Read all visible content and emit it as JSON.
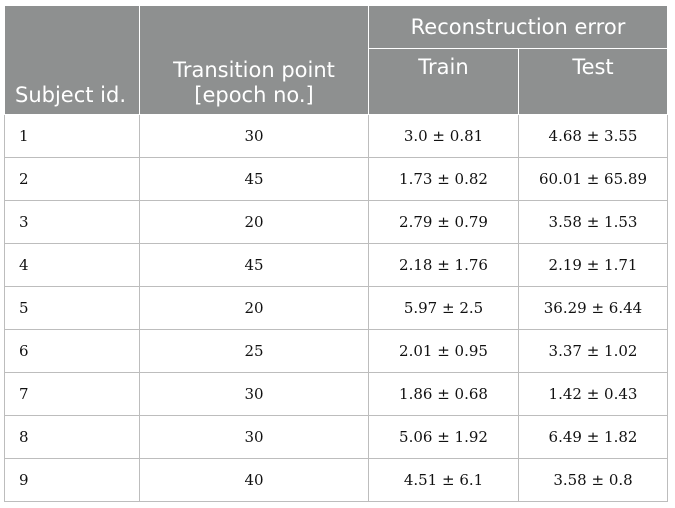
{
  "table": {
    "headers": {
      "subject_id": "Subject id.",
      "transition_point": "Transition point [epoch no.]",
      "reconstruction_error": "Reconstruction error",
      "train": "Train",
      "test": "Test"
    },
    "rows": [
      {
        "subject": "1",
        "transition": "30",
        "train": "3.0 ± 0.81",
        "test": "4.68 ± 3.55"
      },
      {
        "subject": "2",
        "transition": "45",
        "train": "1.73 ± 0.82",
        "test": "60.01 ± 65.89"
      },
      {
        "subject": "3",
        "transition": "20",
        "train": "2.79 ± 0.79",
        "test": "3.58 ± 1.53"
      },
      {
        "subject": "4",
        "transition": "45",
        "train": "2.18 ± 1.76",
        "test": "2.19 ± 1.71"
      },
      {
        "subject": "5",
        "transition": "20",
        "train": "5.97 ± 2.5",
        "test": "36.29 ± 6.44"
      },
      {
        "subject": "6",
        "transition": "25",
        "train": "2.01 ± 0.95",
        "test": "3.37 ± 1.02"
      },
      {
        "subject": "7",
        "transition": "30",
        "train": "1.86 ± 0.68",
        "test": "1.42 ± 0.43"
      },
      {
        "subject": "8",
        "transition": "30",
        "train": "5.06 ± 1.92",
        "test": "6.49 ± 1.82"
      },
      {
        "subject": "9",
        "transition": "40",
        "train": "4.51 ± 6.1",
        "test": "3.58 ± 0.8"
      }
    ]
  }
}
